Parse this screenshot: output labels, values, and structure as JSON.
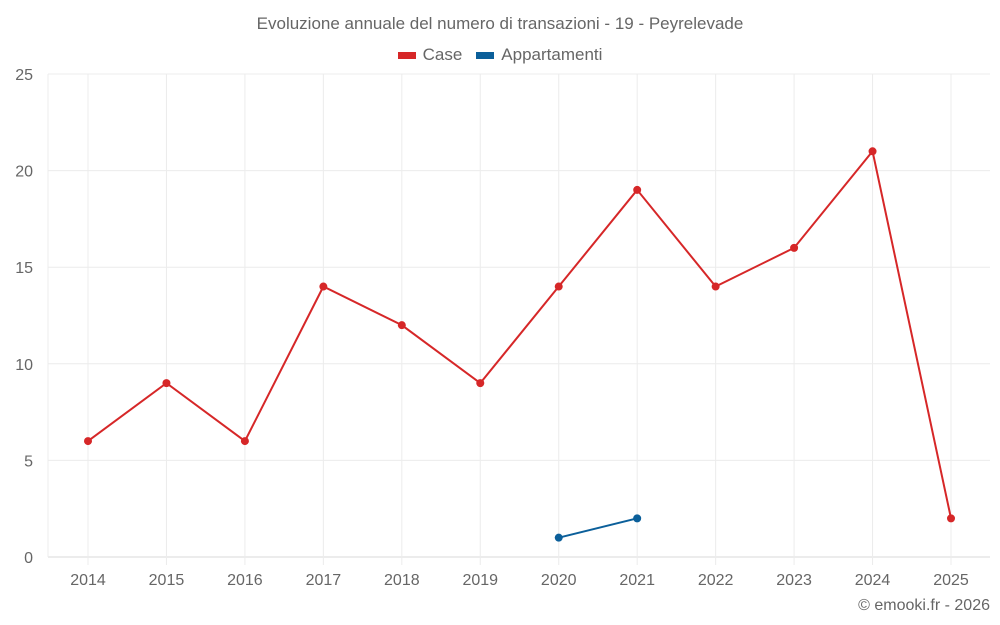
{
  "chart_data": {
    "type": "line",
    "title": "Evoluzione annuale del numero di transazioni - 19 - Peyrelevade",
    "categories": [
      "2014",
      "2015",
      "2016",
      "2017",
      "2018",
      "2019",
      "2020",
      "2021",
      "2022",
      "2023",
      "2024",
      "2025"
    ],
    "series": [
      {
        "name": "Case",
        "color": "#d62728",
        "values": [
          6,
          9,
          6,
          14,
          12,
          9,
          14,
          19,
          14,
          16,
          21,
          2
        ]
      },
      {
        "name": "Appartamenti",
        "color": "#0b5f9a",
        "values": [
          null,
          null,
          null,
          null,
          null,
          null,
          1,
          2,
          null,
          null,
          null,
          null
        ]
      }
    ],
    "xlabel": "",
    "ylabel": "",
    "ylim": [
      0,
      25
    ],
    "yticks": [
      0,
      5,
      10,
      15,
      20,
      25
    ],
    "grid": true,
    "legend_position": "top"
  },
  "legend": {
    "items": [
      {
        "label": "Case",
        "color": "#d62728"
      },
      {
        "label": "Appartamenti",
        "color": "#0b5f9a"
      }
    ]
  },
  "credit": "© emooki.fr - 2026"
}
